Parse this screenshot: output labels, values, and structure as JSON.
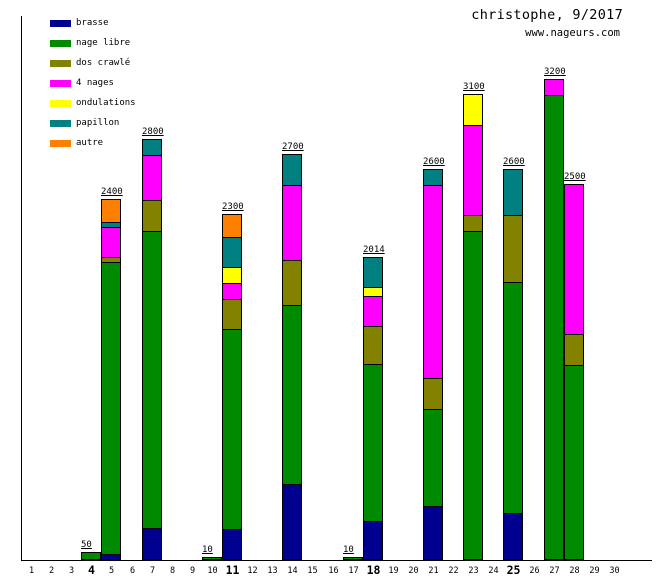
{
  "header": {
    "title": "christophe, 9/2017",
    "site": "www.nageurs.com"
  },
  "colors": {
    "brasse": "#000090",
    "nage libre": "#008a00",
    "dos crawlé": "#828200",
    "4 nages": "#ff00ff",
    "ondulations": "#ffff00",
    "papillon": "#008080",
    "autre": "#ff8000"
  },
  "legend": [
    "brasse",
    "nage libre",
    "dos crawlé",
    "4 nages",
    "ondulations",
    "papillon",
    "autre"
  ],
  "chart_data": {
    "type": "bar",
    "stacked": true,
    "unit": "meters",
    "title": "christophe, 9/2017",
    "legend_position": "top-left",
    "grid": false,
    "x_axis": {
      "days": 30,
      "bold_days": [
        4,
        11,
        18,
        25
      ]
    },
    "y_axis": {
      "visible_labels": false,
      "implied_range": [
        0,
        3400
      ]
    },
    "bars": [
      {
        "day": 4,
        "label": "50",
        "total": 50,
        "segments": [
          [
            "nage libre",
            50
          ]
        ]
      },
      {
        "day": 5,
        "label": "2400",
        "total": 2400,
        "segments": [
          [
            "brasse",
            25
          ],
          [
            "nage libre",
            1975
          ],
          [
            "dos crawlé",
            25
          ],
          [
            "4 nages",
            200
          ],
          [
            "papillon",
            25
          ],
          [
            "autre",
            150
          ]
        ]
      },
      {
        "day": 7,
        "label": "2800",
        "total": 2800,
        "segments": [
          [
            "brasse",
            200
          ],
          [
            "nage libre",
            2000
          ],
          [
            "dos crawlé",
            200
          ],
          [
            "4 nages",
            300
          ],
          [
            "papillon",
            100
          ]
        ]
      },
      {
        "day": 10,
        "label": "10",
        "total": 10,
        "segments": [
          [
            "nage libre",
            10
          ]
        ]
      },
      {
        "day": 11,
        "label": "2300",
        "total": 2300,
        "segments": [
          [
            "brasse",
            200
          ],
          [
            "nage libre",
            1350
          ],
          [
            "dos crawlé",
            200
          ],
          [
            "4 nages",
            100
          ],
          [
            "ondulations",
            100
          ],
          [
            "papillon",
            200
          ],
          [
            "autre",
            150
          ]
        ]
      },
      {
        "day": 14,
        "label": "2700",
        "total": 2700,
        "segments": [
          [
            "brasse",
            500
          ],
          [
            "nage libre",
            1200
          ],
          [
            "dos crawlé",
            300
          ],
          [
            "4 nages",
            500
          ],
          [
            "papillon",
            200
          ]
        ]
      },
      {
        "day": 17,
        "label": "10",
        "total": 10,
        "segments": [
          [
            "nage libre",
            10
          ]
        ]
      },
      {
        "day": 18,
        "label": "2014",
        "total": 2014,
        "segments": [
          [
            "brasse",
            250
          ],
          [
            "nage libre",
            1064
          ],
          [
            "dos crawlé",
            250
          ],
          [
            "4 nages",
            200
          ],
          [
            "ondulations",
            50
          ],
          [
            "papillon",
            200
          ]
        ]
      },
      {
        "day": 21,
        "label": "2600",
        "total": 2600,
        "segments": [
          [
            "brasse",
            350
          ],
          [
            "nage libre",
            650
          ],
          [
            "dos crawlé",
            200
          ],
          [
            "4 nages",
            1300
          ],
          [
            "papillon",
            100
          ]
        ]
      },
      {
        "day": 23,
        "label": "3100",
        "total": 3100,
        "segments": [
          [
            "nage libre",
            2200
          ],
          [
            "dos crawlé",
            100
          ],
          [
            "4 nages",
            600
          ],
          [
            "ondulations",
            200
          ]
        ]
      },
      {
        "day": 25,
        "label": "2600",
        "total": 2600,
        "segments": [
          [
            "brasse",
            300
          ],
          [
            "nage libre",
            1550
          ],
          [
            "dos crawlé",
            450
          ],
          [
            "papillon",
            300
          ]
        ]
      },
      {
        "day": 27,
        "label": "3200",
        "total": 3200,
        "segments": [
          [
            "nage libre",
            3100
          ],
          [
            "4 nages",
            100
          ]
        ]
      },
      {
        "day": 28,
        "label": "2500",
        "total": 2500,
        "segments": [
          [
            "nage libre",
            1300
          ],
          [
            "dos crawlé",
            200
          ],
          [
            "4 nages",
            1000
          ]
        ]
      }
    ]
  }
}
